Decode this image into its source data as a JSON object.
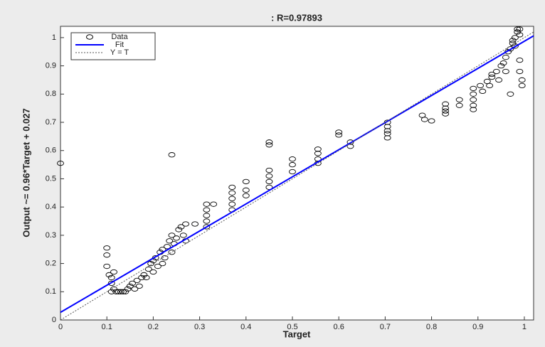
{
  "chart_data": {
    "type": "scatter",
    "title": ": R=0.97893",
    "x_label": "Target",
    "y_label": "Output ~= 0.96*Target + 0.027",
    "xlim": [
      0,
      1.02
    ],
    "ylim": [
      0,
      1.04
    ],
    "xticks": [
      0,
      0.1,
      0.2,
      0.3,
      0.4,
      0.5,
      0.6,
      0.7,
      0.8,
      0.9,
      1
    ],
    "yticks": [
      0,
      0.1,
      0.2,
      0.3,
      0.4,
      0.5,
      0.6,
      0.7,
      0.8,
      0.9,
      1
    ],
    "legend": "upper left",
    "series": [
      {
        "name": "Data",
        "color": "#000000",
        "kind": "markers",
        "x": [
          0,
          0.1,
          0.1,
          0.1,
          0.105,
          0.11,
          0.11,
          0.11,
          0.115,
          0.115,
          0.12,
          0.125,
          0.13,
          0.135,
          0.14,
          0.145,
          0.15,
          0.155,
          0.16,
          0.165,
          0.17,
          0.175,
          0.18,
          0.185,
          0.19,
          0.195,
          0.2,
          0.2,
          0.205,
          0.21,
          0.215,
          0.22,
          0.22,
          0.225,
          0.23,
          0.235,
          0.24,
          0.24,
          0.245,
          0.25,
          0.255,
          0.26,
          0.265,
          0.27,
          0.27,
          0.24,
          0.29,
          0.315,
          0.315,
          0.315,
          0.315,
          0.315,
          0.33,
          0.37,
          0.37,
          0.37,
          0.37,
          0.37,
          0.4,
          0.4,
          0.4,
          0.45,
          0.45,
          0.45,
          0.45,
          0.45,
          0.45,
          0.5,
          0.5,
          0.5,
          0.555,
          0.555,
          0.555,
          0.555,
          0.6,
          0.6,
          0.625,
          0.625,
          0.705,
          0.705,
          0.705,
          0.705,
          0.705,
          0.78,
          0.785,
          0.8,
          0.83,
          0.83,
          0.83,
          0.83,
          0.86,
          0.86,
          0.89,
          0.89,
          0.89,
          0.89,
          0.89,
          0.905,
          0.91,
          0.92,
          0.925,
          0.93,
          0.93,
          0.94,
          0.945,
          0.95,
          0.955,
          0.96,
          0.96,
          0.965,
          0.97,
          0.97,
          0.975,
          0.98,
          0.98,
          0.985,
          0.985,
          0.99,
          0.99,
          0.99,
          0.995,
          0.995,
          0.99,
          0.975
        ],
        "values": [
          0.555,
          0.255,
          0.23,
          0.19,
          0.16,
          0.15,
          0.13,
          0.1,
          0.17,
          0.11,
          0.1,
          0.1,
          0.1,
          0.1,
          0.1,
          0.11,
          0.12,
          0.13,
          0.11,
          0.14,
          0.12,
          0.15,
          0.16,
          0.15,
          0.18,
          0.2,
          0.21,
          0.17,
          0.22,
          0.19,
          0.24,
          0.25,
          0.2,
          0.22,
          0.26,
          0.28,
          0.3,
          0.24,
          0.27,
          0.29,
          0.32,
          0.33,
          0.3,
          0.34,
          0.28,
          0.585,
          0.34,
          0.41,
          0.39,
          0.37,
          0.35,
          0.33,
          0.41,
          0.47,
          0.45,
          0.43,
          0.41,
          0.39,
          0.49,
          0.46,
          0.44,
          0.63,
          0.62,
          0.53,
          0.51,
          0.49,
          0.47,
          0.57,
          0.55,
          0.525,
          0.605,
          0.59,
          0.57,
          0.555,
          0.665,
          0.655,
          0.63,
          0.615,
          0.7,
          0.685,
          0.67,
          0.66,
          0.645,
          0.725,
          0.71,
          0.705,
          0.765,
          0.75,
          0.74,
          0.73,
          0.78,
          0.76,
          0.82,
          0.8,
          0.78,
          0.76,
          0.745,
          0.83,
          0.81,
          0.845,
          0.83,
          0.87,
          0.86,
          0.88,
          0.85,
          0.9,
          0.91,
          0.93,
          0.88,
          0.95,
          0.96,
          0.8,
          0.98,
          1.0,
          0.97,
          1.02,
          1.03,
          1.01,
          0.92,
          0.88,
          0.85,
          0.83,
          1.03,
          0.99
        ]
      },
      {
        "name": "Fit",
        "color": "#0000ff",
        "kind": "solid",
        "x": [
          0,
          1.02
        ],
        "values": [
          0.027,
          1.0062
        ]
      },
      {
        "name": "Y = T",
        "color": "#555555",
        "kind": "dotted",
        "x": [
          0,
          1.02
        ],
        "values": [
          0,
          1.02
        ]
      }
    ]
  }
}
